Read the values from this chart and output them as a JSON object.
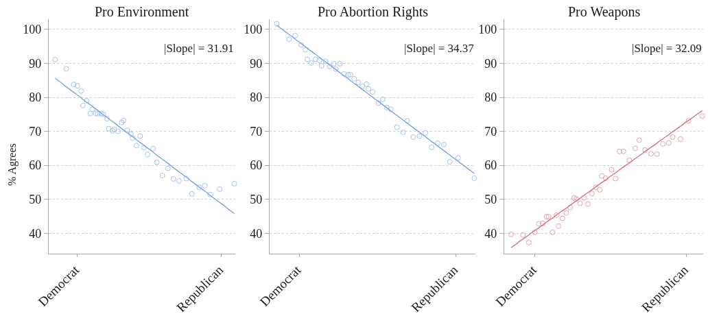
{
  "chart_data": [
    {
      "type": "scatter",
      "title": "Pro Environment",
      "ylabel": "% Agrees",
      "annotations": [
        "|Slope| = 31.91"
      ],
      "categories": [
        null,
        null,
        null,
        null,
        null,
        null,
        null,
        null,
        null,
        null,
        null,
        null,
        null,
        null,
        null,
        "Democrat",
        null,
        null,
        null,
        null,
        null,
        null,
        null,
        null,
        null,
        null,
        null,
        null,
        null,
        null,
        null,
        null,
        null,
        null,
        null,
        null,
        null,
        null,
        null,
        null,
        null,
        null,
        null,
        null,
        null,
        null,
        null,
        null,
        null,
        null,
        null,
        null,
        null,
        null,
        null,
        null,
        null,
        null,
        null,
        null,
        null,
        null,
        null,
        null,
        null,
        null,
        null,
        null,
        null,
        null,
        null,
        null,
        null,
        null,
        null,
        null,
        null,
        null,
        null,
        null,
        null,
        null,
        null,
        null,
        null,
        null,
        null,
        null,
        null,
        null,
        null,
        null,
        null,
        "Republican",
        null,
        null,
        null,
        null,
        null,
        null,
        null
      ],
      "ylim": [
        34,
        103
      ],
      "yticks": [
        40,
        50,
        60,
        70,
        80,
        90,
        100
      ],
      "grid": "y",
      "series": [
        {
          "color": "#a6c1f0",
          "marker": "circle",
          "values": [
            null,
            null,
            null,
            91.1,
            null,
            null,
            null,
            null,
            null,
            88.4,
            null,
            null,
            null,
            83.8,
            null,
            83.4,
            null,
            81.9,
            77.6,
            null,
            79.0,
            null,
            75.2,
            76.5,
            null,
            75.3,
            75.2,
            null,
            75.2,
            75.0,
            null,
            73.7,
            70.8,
            null,
            70.2,
            70.6,
            null,
            70.0,
            null,
            72.6,
            73.2,
            null,
            70.3,
            null,
            69.2,
            68.0,
            null,
            65.8,
            null,
            68.6,
            null,
            65.2,
            null,
            63.2,
            null,
            null,
            64.9,
            null,
            60.9,
            null,
            null,
            57.0,
            null,
            null,
            59.1,
            null,
            null,
            56.0,
            null,
            null,
            55.4,
            null,
            null,
            null,
            56.1,
            null,
            null,
            51.6,
            null,
            null,
            null,
            53.5,
            null,
            null,
            54.0,
            null,
            null,
            51.4,
            null,
            null,
            null,
            null,
            53.0,
            null,
            null,
            null,
            null,
            null,
            null,
            null,
            54.6
          ]
        },
        {
          "type": "line",
          "color": "#7aa3e6",
          "values": [
            null,
            null,
            null,
            85.6,
            85.2,
            84.8,
            84.4,
            84.0,
            83.5,
            83.1,
            82.7,
            82.3,
            81.9,
            81.5,
            81.1,
            80.7,
            80.3,
            79.9,
            79.4,
            79.0,
            78.6,
            78.2,
            77.8,
            77.4,
            77.0,
            76.6,
            76.2,
            75.8,
            75.3,
            74.9,
            74.5,
            74.1,
            73.7,
            73.3,
            72.9,
            72.5,
            72.1,
            71.6,
            71.2,
            70.8,
            70.4,
            70.0,
            69.6,
            69.2,
            68.8,
            68.4,
            68.0,
            67.5,
            67.1,
            66.7,
            66.3,
            65.9,
            65.5,
            65.1,
            64.7,
            64.3,
            63.9,
            63.4,
            63.0,
            62.6,
            62.2,
            61.8,
            61.4,
            61.0,
            60.6,
            60.2,
            59.7,
            59.3,
            58.9,
            58.5,
            58.1,
            57.7,
            57.3,
            56.9,
            56.5,
            56.1,
            55.6,
            55.2,
            54.8,
            54.4,
            54.0,
            53.6,
            53.2,
            52.8,
            52.4,
            52.0,
            51.5,
            51.1,
            50.7,
            50.3,
            49.9,
            49.5,
            49.1,
            48.7,
            48.3,
            47.9,
            47.4,
            47.0,
            46.6,
            46.2,
            45.8
          ]
        }
      ]
    },
    {
      "type": "scatter",
      "title": "Pro Abortion Rights",
      "annotations": [
        "|Slope| = 34.37"
      ],
      "categories": [
        null,
        null,
        null,
        null,
        null,
        null,
        null,
        null,
        null,
        null,
        null,
        null,
        null,
        null,
        "Democrat",
        null,
        null,
        null,
        null,
        null,
        null,
        null,
        null,
        null,
        null,
        null,
        null,
        null,
        null,
        null,
        null,
        null,
        null,
        null,
        null,
        null,
        null,
        null,
        null,
        null,
        null,
        null,
        null,
        null,
        null,
        null,
        null,
        null,
        null,
        null,
        null,
        null,
        null,
        null,
        null,
        null,
        null,
        null,
        null,
        null,
        null,
        null,
        null,
        null,
        null,
        null,
        null,
        null,
        null,
        null,
        null,
        null,
        null,
        null,
        null,
        null,
        null,
        null,
        null,
        null,
        null,
        null,
        null,
        null,
        null,
        null,
        null,
        null,
        null,
        null,
        null,
        "Republican",
        null,
        null,
        null,
        null,
        null,
        null,
        null,
        null,
        null
      ],
      "ylim": [
        34,
        103
      ],
      "yticks": [
        40,
        50,
        60,
        70,
        80,
        90,
        100
      ],
      "grid": "y",
      "series": [
        {
          "color": "#a6c1f0",
          "marker": "circle",
          "values": [
            null,
            null,
            null,
            101.7,
            null,
            null,
            null,
            null,
            null,
            97.1,
            null,
            null,
            98.2,
            null,
            null,
            95.4,
            null,
            94.0,
            91.2,
            null,
            90.1,
            null,
            91.2,
            null,
            90.9,
            89.3,
            null,
            90.6,
            null,
            89.1,
            null,
            89.9,
            88.3,
            null,
            89.9,
            null,
            86.9,
            null,
            86.6,
            86.7,
            null,
            85.5,
            null,
            84.4,
            null,
            83.3,
            null,
            83.9,
            82.5,
            null,
            81.6,
            null,
            null,
            78.3,
            null,
            79.4,
            null,
            77.0,
            null,
            76.5,
            null,
            null,
            71.2,
            null,
            null,
            69.7,
            null,
            73.1,
            null,
            null,
            68.3,
            null,
            null,
            68.6,
            null,
            null,
            69.5,
            null,
            null,
            65.3,
            null,
            null,
            66.5,
            null,
            null,
            66.1,
            null,
            null,
            61.0,
            null,
            null,
            null,
            62.2,
            null,
            null,
            null,
            null,
            null,
            null,
            null,
            56.2
          ]
        },
        {
          "type": "line",
          "color": "#7aa3e6",
          "values": [
            null,
            null,
            null,
            101.2,
            100.8,
            100.3,
            99.9,
            99.4,
            99.0,
            98.5,
            98.1,
            97.6,
            97.2,
            96.7,
            96.3,
            95.8,
            95.4,
            94.9,
            94.5,
            94.0,
            93.6,
            93.1,
            92.7,
            92.2,
            91.8,
            91.3,
            90.9,
            90.4,
            90.0,
            89.5,
            89.1,
            88.6,
            88.2,
            87.7,
            87.3,
            86.8,
            86.4,
            85.9,
            85.5,
            85.0,
            84.6,
            84.1,
            83.7,
            83.2,
            82.8,
            82.3,
            81.9,
            81.4,
            81.0,
            80.5,
            80.1,
            79.6,
            79.2,
            78.7,
            78.3,
            77.8,
            77.4,
            76.9,
            76.5,
            76.0,
            75.6,
            75.1,
            74.7,
            74.2,
            73.8,
            73.3,
            72.9,
            72.4,
            72.0,
            71.5,
            71.1,
            70.6,
            70.2,
            69.7,
            69.3,
            68.8,
            68.4,
            67.9,
            67.5,
            67.0,
            66.6,
            66.1,
            65.7,
            65.2,
            64.8,
            64.3,
            63.9,
            63.4,
            63.0,
            62.5,
            62.1,
            61.6,
            61.2,
            60.7,
            60.3,
            59.8,
            59.4,
            58.9,
            58.5,
            58.0,
            57.6
          ]
        }
      ]
    },
    {
      "type": "scatter",
      "title": "Pro Weapons",
      "annotations": [
        "|Slope| = 32.09"
      ],
      "categories": [
        null,
        null,
        null,
        null,
        null,
        null,
        null,
        null,
        null,
        null,
        null,
        null,
        null,
        null,
        null,
        "Democrat",
        null,
        null,
        null,
        null,
        null,
        null,
        null,
        null,
        null,
        null,
        null,
        null,
        null,
        null,
        null,
        null,
        null,
        null,
        null,
        null,
        null,
        null,
        null,
        null,
        null,
        null,
        null,
        null,
        null,
        null,
        null,
        null,
        null,
        null,
        null,
        null,
        null,
        null,
        null,
        null,
        null,
        null,
        null,
        null,
        null,
        null,
        null,
        null,
        null,
        null,
        null,
        null,
        null,
        null,
        null,
        null,
        null,
        null,
        null,
        null,
        null,
        null,
        null,
        null,
        null,
        null,
        null,
        null,
        null,
        null,
        null,
        null,
        null,
        null,
        null,
        null,
        "Republican",
        null,
        null,
        null,
        null,
        null,
        null,
        null,
        null
      ],
      "ylim": [
        34,
        103
      ],
      "yticks": [
        40,
        50,
        60,
        70,
        80,
        90,
        100
      ],
      "grid": "y",
      "series": [
        {
          "color": "#e5a3aa",
          "marker": "circle",
          "values": [
            null,
            null,
            null,
            39.7,
            null,
            null,
            null,
            null,
            null,
            39.5,
            null,
            null,
            37.3,
            null,
            null,
            40.3,
            null,
            42.8,
            null,
            42.9,
            null,
            44.9,
            44.9,
            null,
            40.3,
            null,
            45.3,
            42.1,
            null,
            44.4,
            null,
            46.0,
            null,
            47.6,
            null,
            50.4,
            50.1,
            null,
            48.8,
            null,
            50.4,
            null,
            48.6,
            null,
            51.7,
            null,
            53.5,
            null,
            52.8,
            56.9,
            null,
            56.2,
            null,
            null,
            58.7,
            null,
            56.1,
            null,
            64.1,
            null,
            64.1,
            null,
            null,
            61.5,
            null,
            null,
            65.0,
            null,
            67.4,
            null,
            null,
            64.5,
            null,
            null,
            63.4,
            null,
            null,
            63.3,
            null,
            null,
            66.3,
            null,
            null,
            66.6,
            null,
            68.3,
            null,
            null,
            null,
            67.7,
            null,
            null,
            null,
            73.1,
            null,
            null,
            null,
            null,
            null,
            null,
            74.5
          ]
        },
        {
          "type": "line",
          "color": "#d9737e",
          "values": [
            null,
            null,
            null,
            35.8,
            36.2,
            36.6,
            37.0,
            37.5,
            37.9,
            38.3,
            38.7,
            39.1,
            39.5,
            40.0,
            40.4,
            40.8,
            41.2,
            41.6,
            42.0,
            42.4,
            42.9,
            43.3,
            43.7,
            44.1,
            44.5,
            44.9,
            45.4,
            45.8,
            46.2,
            46.6,
            47.0,
            47.4,
            47.8,
            48.3,
            48.7,
            49.1,
            49.5,
            49.9,
            50.3,
            50.8,
            51.2,
            51.6,
            52.0,
            52.4,
            52.8,
            53.2,
            53.7,
            54.1,
            54.5,
            54.9,
            55.3,
            55.7,
            56.2,
            56.6,
            57.0,
            57.4,
            57.8,
            58.2,
            58.7,
            59.1,
            59.5,
            59.9,
            60.3,
            60.7,
            61.1,
            61.6,
            62.0,
            62.4,
            62.8,
            63.2,
            63.6,
            64.1,
            64.5,
            64.9,
            65.3,
            65.7,
            66.1,
            66.5,
            67.0,
            67.4,
            67.8,
            68.2,
            68.6,
            69.0,
            69.5,
            69.9,
            70.3,
            70.7,
            71.1,
            71.5,
            71.9,
            72.4,
            72.8,
            73.2,
            73.6,
            74.0,
            74.4,
            74.9,
            75.3,
            75.7,
            76.1
          ]
        }
      ]
    }
  ]
}
